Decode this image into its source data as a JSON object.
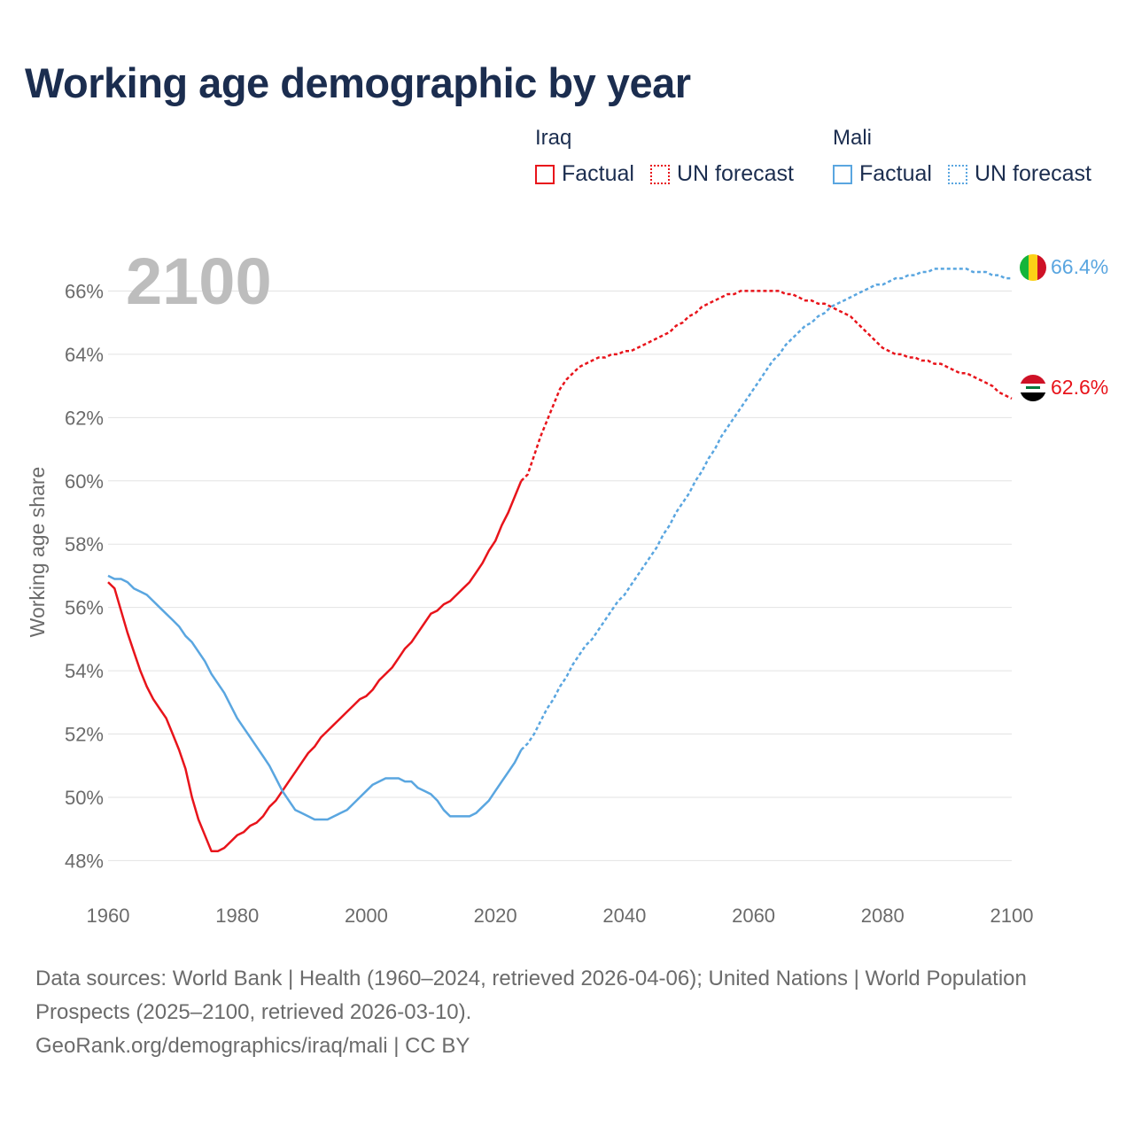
{
  "title": "Working age demographic by year",
  "legend": {
    "groups": [
      {
        "name": "Iraq",
        "color": "#e8141b",
        "factual_label": "Factual",
        "forecast_label": "UN forecast"
      },
      {
        "name": "Mali",
        "color": "#5aa6e0",
        "factual_label": "Factual",
        "forecast_label": "UN forecast"
      }
    ]
  },
  "year_watermark": "2100",
  "footer": {
    "sources": "Data sources: World Bank | Health (1960–2024, retrieved 2026-04-06); United Nations | World Population Prospects (2025–2100, retrieved 2026-03-10).",
    "credit": "GeoRank.org/demographics/iraq/mali | CC BY"
  },
  "chart_data": {
    "type": "line",
    "title": "Working age demographic by year",
    "xlabel": "",
    "ylabel": "Working age share",
    "xlim": [
      1960,
      2100
    ],
    "ylim": [
      47.2,
      67.3
    ],
    "x_ticks": [
      1960,
      1980,
      2000,
      2020,
      2040,
      2060,
      2080,
      2100
    ],
    "y_ticks": [
      48,
      50,
      52,
      54,
      56,
      58,
      60,
      62,
      64,
      66
    ],
    "y_tick_labels": [
      "48%",
      "50%",
      "52%",
      "54%",
      "56%",
      "58%",
      "60%",
      "62%",
      "64%",
      "66%"
    ],
    "factual_end_year": 2024,
    "series": [
      {
        "name": "Iraq",
        "color": "#e8141b",
        "end_label": "62.6%",
        "points": [
          [
            1960,
            56.8
          ],
          [
            1961,
            56.6
          ],
          [
            1962,
            55.9
          ],
          [
            1963,
            55.2
          ],
          [
            1964,
            54.6
          ],
          [
            1965,
            54.0
          ],
          [
            1966,
            53.5
          ],
          [
            1967,
            53.1
          ],
          [
            1968,
            52.8
          ],
          [
            1969,
            52.5
          ],
          [
            1970,
            52.0
          ],
          [
            1971,
            51.5
          ],
          [
            1972,
            50.9
          ],
          [
            1973,
            50.0
          ],
          [
            1974,
            49.3
          ],
          [
            1975,
            48.8
          ],
          [
            1976,
            48.3
          ],
          [
            1977,
            48.3
          ],
          [
            1978,
            48.4
          ],
          [
            1979,
            48.6
          ],
          [
            1980,
            48.8
          ],
          [
            1981,
            48.9
          ],
          [
            1982,
            49.1
          ],
          [
            1983,
            49.2
          ],
          [
            1984,
            49.4
          ],
          [
            1985,
            49.7
          ],
          [
            1986,
            49.9
          ],
          [
            1987,
            50.2
          ],
          [
            1988,
            50.5
          ],
          [
            1989,
            50.8
          ],
          [
            1990,
            51.1
          ],
          [
            1991,
            51.4
          ],
          [
            1992,
            51.6
          ],
          [
            1993,
            51.9
          ],
          [
            1994,
            52.1
          ],
          [
            1995,
            52.3
          ],
          [
            1996,
            52.5
          ],
          [
            1997,
            52.7
          ],
          [
            1998,
            52.9
          ],
          [
            1999,
            53.1
          ],
          [
            2000,
            53.2
          ],
          [
            2001,
            53.4
          ],
          [
            2002,
            53.7
          ],
          [
            2003,
            53.9
          ],
          [
            2004,
            54.1
          ],
          [
            2005,
            54.4
          ],
          [
            2006,
            54.7
          ],
          [
            2007,
            54.9
          ],
          [
            2008,
            55.2
          ],
          [
            2009,
            55.5
          ],
          [
            2010,
            55.8
          ],
          [
            2011,
            55.9
          ],
          [
            2012,
            56.1
          ],
          [
            2013,
            56.2
          ],
          [
            2014,
            56.4
          ],
          [
            2015,
            56.6
          ],
          [
            2016,
            56.8
          ],
          [
            2017,
            57.1
          ],
          [
            2018,
            57.4
          ],
          [
            2019,
            57.8
          ],
          [
            2020,
            58.1
          ],
          [
            2021,
            58.6
          ],
          [
            2022,
            59.0
          ],
          [
            2023,
            59.5
          ],
          [
            2024,
            60.0
          ],
          [
            2025,
            60.2
          ],
          [
            2026,
            60.8
          ],
          [
            2027,
            61.4
          ],
          [
            2028,
            61.9
          ],
          [
            2029,
            62.4
          ],
          [
            2030,
            62.9
          ],
          [
            2031,
            63.2
          ],
          [
            2032,
            63.4
          ],
          [
            2033,
            63.6
          ],
          [
            2034,
            63.7
          ],
          [
            2035,
            63.8
          ],
          [
            2036,
            63.9
          ],
          [
            2037,
            63.9
          ],
          [
            2038,
            64.0
          ],
          [
            2039,
            64.0
          ],
          [
            2040,
            64.1
          ],
          [
            2041,
            64.1
          ],
          [
            2042,
            64.2
          ],
          [
            2043,
            64.3
          ],
          [
            2044,
            64.4
          ],
          [
            2045,
            64.5
          ],
          [
            2046,
            64.6
          ],
          [
            2047,
            64.7
          ],
          [
            2048,
            64.9
          ],
          [
            2049,
            65.0
          ],
          [
            2050,
            65.2
          ],
          [
            2051,
            65.3
          ],
          [
            2052,
            65.5
          ],
          [
            2053,
            65.6
          ],
          [
            2054,
            65.7
          ],
          [
            2055,
            65.8
          ],
          [
            2056,
            65.9
          ],
          [
            2057,
            65.9
          ],
          [
            2058,
            66.0
          ],
          [
            2059,
            66.0
          ],
          [
            2060,
            66.0
          ],
          [
            2061,
            66.0
          ],
          [
            2062,
            66.0
          ],
          [
            2063,
            66.0
          ],
          [
            2064,
            66.0
          ],
          [
            2065,
            65.9
          ],
          [
            2066,
            65.9
          ],
          [
            2067,
            65.8
          ],
          [
            2068,
            65.7
          ],
          [
            2069,
            65.7
          ],
          [
            2070,
            65.6
          ],
          [
            2071,
            65.6
          ],
          [
            2072,
            65.5
          ],
          [
            2073,
            65.4
          ],
          [
            2074,
            65.3
          ],
          [
            2075,
            65.2
          ],
          [
            2076,
            65.0
          ],
          [
            2077,
            64.8
          ],
          [
            2078,
            64.6
          ],
          [
            2079,
            64.4
          ],
          [
            2080,
            64.2
          ],
          [
            2081,
            64.1
          ],
          [
            2082,
            64.0
          ],
          [
            2083,
            64.0
          ],
          [
            2084,
            63.9
          ],
          [
            2085,
            63.9
          ],
          [
            2086,
            63.8
          ],
          [
            2087,
            63.8
          ],
          [
            2088,
            63.7
          ],
          [
            2089,
            63.7
          ],
          [
            2090,
            63.6
          ],
          [
            2091,
            63.5
          ],
          [
            2092,
            63.4
          ],
          [
            2093,
            63.4
          ],
          [
            2094,
            63.3
          ],
          [
            2095,
            63.2
          ],
          [
            2096,
            63.1
          ],
          [
            2097,
            63.0
          ],
          [
            2098,
            62.8
          ],
          [
            2099,
            62.7
          ],
          [
            2100,
            62.6
          ]
        ]
      },
      {
        "name": "Mali",
        "color": "#5aa6e0",
        "end_label": "66.4%",
        "points": [
          [
            1960,
            57.0
          ],
          [
            1961,
            56.9
          ],
          [
            1962,
            56.9
          ],
          [
            1963,
            56.8
          ],
          [
            1964,
            56.6
          ],
          [
            1965,
            56.5
          ],
          [
            1966,
            56.4
          ],
          [
            1967,
            56.2
          ],
          [
            1968,
            56.0
          ],
          [
            1969,
            55.8
          ],
          [
            1970,
            55.6
          ],
          [
            1971,
            55.4
          ],
          [
            1972,
            55.1
          ],
          [
            1973,
            54.9
          ],
          [
            1974,
            54.6
          ],
          [
            1975,
            54.3
          ],
          [
            1976,
            53.9
          ],
          [
            1977,
            53.6
          ],
          [
            1978,
            53.3
          ],
          [
            1979,
            52.9
          ],
          [
            1980,
            52.5
          ],
          [
            1981,
            52.2
          ],
          [
            1982,
            51.9
          ],
          [
            1983,
            51.6
          ],
          [
            1984,
            51.3
          ],
          [
            1985,
            51.0
          ],
          [
            1986,
            50.6
          ],
          [
            1987,
            50.2
          ],
          [
            1988,
            49.9
          ],
          [
            1989,
            49.6
          ],
          [
            1990,
            49.5
          ],
          [
            1991,
            49.4
          ],
          [
            1992,
            49.3
          ],
          [
            1993,
            49.3
          ],
          [
            1994,
            49.3
          ],
          [
            1995,
            49.4
          ],
          [
            1996,
            49.5
          ],
          [
            1997,
            49.6
          ],
          [
            1998,
            49.8
          ],
          [
            1999,
            50.0
          ],
          [
            2000,
            50.2
          ],
          [
            2001,
            50.4
          ],
          [
            2002,
            50.5
          ],
          [
            2003,
            50.6
          ],
          [
            2004,
            50.6
          ],
          [
            2005,
            50.6
          ],
          [
            2006,
            50.5
          ],
          [
            2007,
            50.5
          ],
          [
            2008,
            50.3
          ],
          [
            2009,
            50.2
          ],
          [
            2010,
            50.1
          ],
          [
            2011,
            49.9
          ],
          [
            2012,
            49.6
          ],
          [
            2013,
            49.4
          ],
          [
            2014,
            49.4
          ],
          [
            2015,
            49.4
          ],
          [
            2016,
            49.4
          ],
          [
            2017,
            49.5
          ],
          [
            2018,
            49.7
          ],
          [
            2019,
            49.9
          ],
          [
            2020,
            50.2
          ],
          [
            2021,
            50.5
          ],
          [
            2022,
            50.8
          ],
          [
            2023,
            51.1
          ],
          [
            2024,
            51.5
          ],
          [
            2025,
            51.7
          ],
          [
            2026,
            52.0
          ],
          [
            2027,
            52.4
          ],
          [
            2028,
            52.8
          ],
          [
            2029,
            53.1
          ],
          [
            2030,
            53.5
          ],
          [
            2031,
            53.8
          ],
          [
            2032,
            54.2
          ],
          [
            2033,
            54.5
          ],
          [
            2034,
            54.8
          ],
          [
            2035,
            55.0
          ],
          [
            2036,
            55.3
          ],
          [
            2037,
            55.6
          ],
          [
            2038,
            55.9
          ],
          [
            2039,
            56.2
          ],
          [
            2040,
            56.4
          ],
          [
            2041,
            56.7
          ],
          [
            2042,
            57.0
          ],
          [
            2043,
            57.3
          ],
          [
            2044,
            57.6
          ],
          [
            2045,
            57.9
          ],
          [
            2046,
            58.3
          ],
          [
            2047,
            58.6
          ],
          [
            2048,
            59.0
          ],
          [
            2049,
            59.3
          ],
          [
            2050,
            59.6
          ],
          [
            2051,
            60.0
          ],
          [
            2052,
            60.3
          ],
          [
            2053,
            60.7
          ],
          [
            2054,
            61.0
          ],
          [
            2055,
            61.4
          ],
          [
            2056,
            61.7
          ],
          [
            2057,
            62.0
          ],
          [
            2058,
            62.3
          ],
          [
            2059,
            62.6
          ],
          [
            2060,
            62.9
          ],
          [
            2061,
            63.2
          ],
          [
            2062,
            63.5
          ],
          [
            2063,
            63.8
          ],
          [
            2064,
            64.0
          ],
          [
            2065,
            64.3
          ],
          [
            2066,
            64.5
          ],
          [
            2067,
            64.7
          ],
          [
            2068,
            64.9
          ],
          [
            2069,
            65.0
          ],
          [
            2070,
            65.2
          ],
          [
            2071,
            65.3
          ],
          [
            2072,
            65.5
          ],
          [
            2073,
            65.6
          ],
          [
            2074,
            65.7
          ],
          [
            2075,
            65.8
          ],
          [
            2076,
            65.9
          ],
          [
            2077,
            66.0
          ],
          [
            2078,
            66.1
          ],
          [
            2079,
            66.2
          ],
          [
            2080,
            66.2
          ],
          [
            2081,
            66.3
          ],
          [
            2082,
            66.4
          ],
          [
            2083,
            66.4
          ],
          [
            2084,
            66.5
          ],
          [
            2085,
            66.5
          ],
          [
            2086,
            66.6
          ],
          [
            2087,
            66.6
          ],
          [
            2088,
            66.7
          ],
          [
            2089,
            66.7
          ],
          [
            2090,
            66.7
          ],
          [
            2091,
            66.7
          ],
          [
            2092,
            66.7
          ],
          [
            2093,
            66.7
          ],
          [
            2094,
            66.6
          ],
          [
            2095,
            66.6
          ],
          [
            2096,
            66.6
          ],
          [
            2097,
            66.5
          ],
          [
            2098,
            66.5
          ],
          [
            2099,
            66.4
          ],
          [
            2100,
            66.4
          ]
        ]
      }
    ]
  }
}
